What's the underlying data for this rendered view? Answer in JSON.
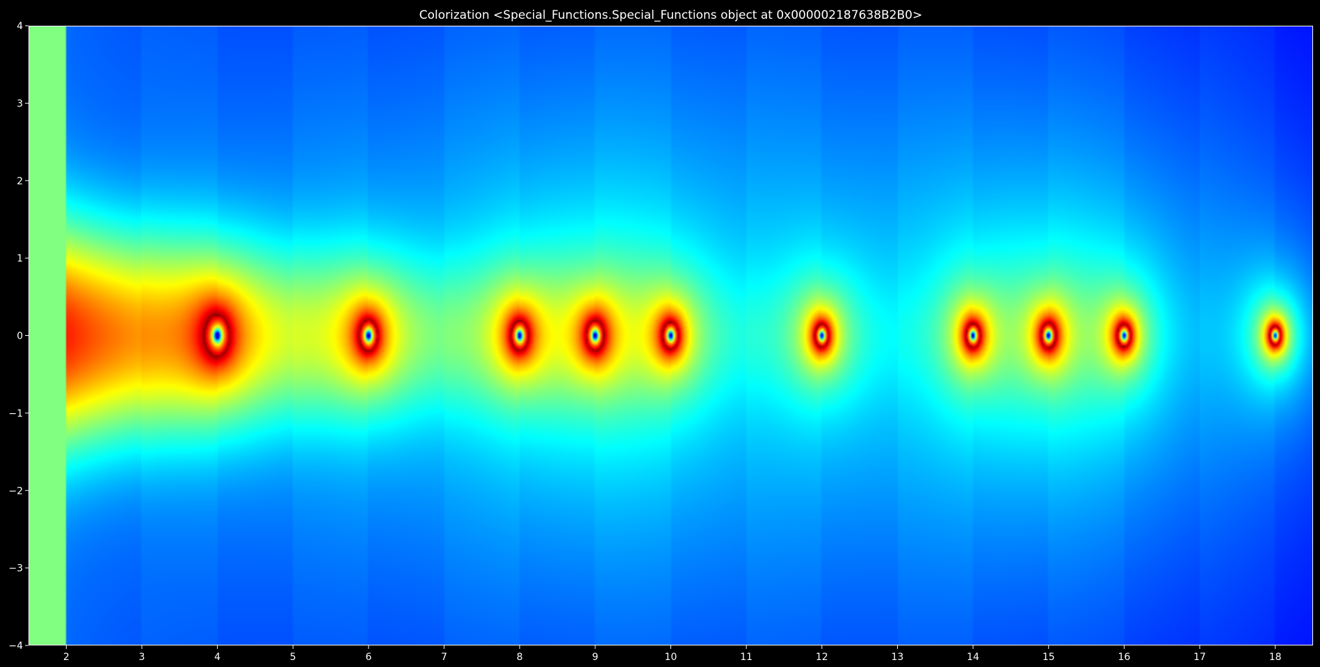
{
  "chart_data": {
    "type": "heatmap",
    "title": "Colorization <Special_Functions.Special_Functions object at 0x000002187638B2B0>",
    "xlabel": "",
    "ylabel": "",
    "xlim": [
      1.5,
      18.5
    ],
    "ylim": [
      -4,
      4
    ],
    "x_ticks": [
      2,
      3,
      4,
      5,
      6,
      7,
      8,
      9,
      10,
      11,
      12,
      13,
      14,
      15,
      16,
      17,
      18
    ],
    "x_tick_labels": [
      "2",
      "3",
      "4",
      "5",
      "6",
      "7",
      "8",
      "9",
      "10",
      "11",
      "12",
      "13",
      "14",
      "15",
      "16",
      "17",
      "18"
    ],
    "y_ticks": [
      4,
      3,
      2,
      1,
      0,
      -1,
      -2,
      -3,
      -4
    ],
    "y_tick_labels": [
      "4",
      "3",
      "2",
      "1",
      "0",
      "−1",
      "−2",
      "−3",
      "−4"
    ],
    "colormap": "jet",
    "grid": false,
    "background": "#000000",
    "foreground": "#ffffff",
    "singularities": [
      {
        "x": 4,
        "y": 0
      },
      {
        "x": 6,
        "y": 0
      },
      {
        "x": 8,
        "y": 0
      },
      {
        "x": 9,
        "y": 0
      },
      {
        "x": 10,
        "y": 0
      },
      {
        "x": 12,
        "y": 0
      },
      {
        "x": 14,
        "y": 0
      },
      {
        "x": 15,
        "y": 0
      },
      {
        "x": 16,
        "y": 0
      },
      {
        "x": 18,
        "y": 0
      }
    ]
  }
}
